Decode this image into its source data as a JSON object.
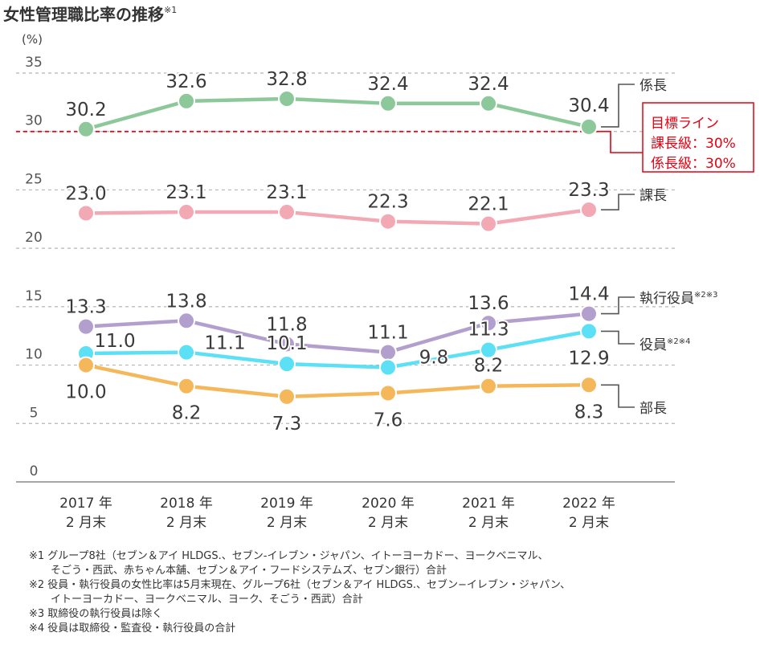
{
  "title": "女性管理職比率の推移",
  "title_note_ref": "※1",
  "chart_data": {
    "type": "line",
    "title": "女性管理職比率の推移",
    "ylabel": "(%)",
    "ylim": [
      0,
      35
    ],
    "yticks": [
      "0",
      "5",
      "10",
      "15",
      "20",
      "25",
      "30",
      "35"
    ],
    "grid": "dashed",
    "categories": [
      {
        "year": "2017 年",
        "month": "2 月末"
      },
      {
        "year": "2018 年",
        "month": "2 月末"
      },
      {
        "year": "2019 年",
        "month": "2 月末"
      },
      {
        "year": "2020 年",
        "month": "2 月末"
      },
      {
        "year": "2021 年",
        "month": "2 月末"
      },
      {
        "year": "2022 年",
        "month": "2 月末"
      }
    ],
    "series": [
      {
        "key": "kakaricho",
        "name": "係長",
        "sup": "",
        "color": "#8dc89b",
        "values": [
          30.2,
          32.6,
          32.8,
          32.4,
          32.4,
          30.4
        ],
        "labels": [
          "30.2",
          "32.6",
          "32.8",
          "32.4",
          "32.4",
          "30.4"
        ]
      },
      {
        "key": "kacho",
        "name": "課長",
        "sup": "",
        "color": "#f2a9b4",
        "values": [
          23.0,
          23.1,
          23.1,
          22.3,
          22.1,
          23.3
        ],
        "labels": [
          "23.0",
          "23.1",
          "23.1",
          "22.3",
          "22.1",
          "23.3"
        ]
      },
      {
        "key": "shikkou",
        "name": "執行役員",
        "sup": "※2※3",
        "color": "#b39fce",
        "values": [
          13.3,
          13.8,
          11.8,
          11.1,
          13.6,
          14.4
        ],
        "labels": [
          "13.3",
          "13.8",
          "11.8",
          "11.1",
          "13.6",
          "14.4"
        ]
      },
      {
        "key": "yakuin",
        "name": "役員",
        "sup": "※2※4",
        "color": "#5ce0f5",
        "values": [
          11.0,
          11.1,
          10.1,
          9.8,
          11.3,
          12.9
        ],
        "labels": [
          "11.0",
          "11.1",
          "10.1",
          "9.8",
          "11.3",
          "12.9"
        ]
      },
      {
        "key": "bucho",
        "name": "部長",
        "sup": "",
        "color": "#f4b85a",
        "values": [
          10.0,
          8.2,
          7.3,
          7.6,
          8.2,
          8.3
        ],
        "labels": [
          "10.0",
          "8.2",
          "7.3",
          "7.6",
          "8.2",
          "8.3"
        ]
      }
    ],
    "target": {
      "value": 30,
      "color": "#e60012",
      "lines": [
        "目標ライン",
        "課長級：30%",
        "係長級：30%"
      ]
    }
  },
  "notes": [
    {
      "text": "※1 グループ8社（セブン＆アイ HLDGS.、セブン-イレブン・ジャパン、イトーヨーカドー、ヨークベニマル、",
      "cont": false
    },
    {
      "text": "そごう・西武、赤ちゃん本舗、セブン＆アイ・フードシステムズ、セブン銀行）合計",
      "cont": true
    },
    {
      "text": "※2 役員・執行役員の女性比率は5月末現在、グループ6社（セブン＆アイ HLDGS.、セブン−イレブン・ジャパン、",
      "cont": false
    },
    {
      "text": "イトーヨーカドー、ヨークベニマル、ヨーク、そごう・西武）合計",
      "cont": true
    },
    {
      "text": "※3 取締役の執行役員は除く",
      "cont": false
    },
    {
      "text": "※4 役員は取締役・監査役・執行役員の合計",
      "cont": false
    }
  ]
}
